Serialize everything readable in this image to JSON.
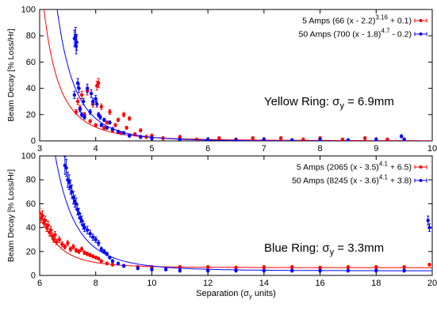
{
  "chart_data": [
    {
      "type": "scatter",
      "ylabel": "Beam Decay [% Loss/Hr]",
      "xlabel": "",
      "xlim": [
        3,
        10
      ],
      "ylim": [
        0,
        100
      ],
      "xticks": [
        "3",
        "4",
        "5",
        "6",
        "7",
        "8",
        "9",
        "10"
      ],
      "yticks": [
        "0",
        "20",
        "40",
        "60",
        "80",
        "100"
      ],
      "annotation": {
        "prefix": "Yellow Ring: ",
        "sym": "σ",
        "sub": "y",
        "suffix": " = 6.9mm"
      },
      "legend_position": "top-right",
      "series": [
        {
          "name_parts": [
            "5 Amps (66 (x - 2.2)",
            "3.16",
            " + 0.1)"
          ],
          "color": "#ff0000",
          "fit": {
            "a": 66,
            "x0": 2.2,
            "p": 3.16,
            "c": 0.1
          },
          "points": [
            [
              3.65,
              22
            ],
            [
              3.68,
              30
            ],
            [
              3.72,
              25
            ],
            [
              3.75,
              35
            ],
            [
              3.8,
              20
            ],
            [
              3.85,
              38
            ],
            [
              3.9,
              15
            ],
            [
              3.95,
              28
            ],
            [
              4.0,
              12
            ],
            [
              4.02,
              42
            ],
            [
              4.05,
              44
            ],
            [
              4.08,
              18
            ],
            [
              4.1,
              26
            ],
            [
              4.15,
              10
            ],
            [
              4.2,
              14
            ],
            [
              4.25,
              22
            ],
            [
              4.3,
              8
            ],
            [
              4.35,
              12
            ],
            [
              4.4,
              16
            ],
            [
              4.45,
              6
            ],
            [
              4.5,
              20
            ],
            [
              4.55,
              10
            ],
            [
              4.6,
              17
            ],
            [
              4.7,
              5
            ],
            [
              4.8,
              8
            ],
            [
              4.9,
              3
            ],
            [
              5.0,
              4
            ],
            [
              5.2,
              2
            ],
            [
              5.5,
              3
            ],
            [
              5.8,
              1
            ],
            [
              6.2,
              2
            ],
            [
              6.5,
              1
            ],
            [
              6.8,
              2
            ],
            [
              7.0,
              1
            ],
            [
              7.3,
              2
            ],
            [
              7.7,
              1
            ],
            [
              8.0,
              2
            ],
            [
              8.4,
              1
            ],
            [
              8.8,
              2
            ],
            [
              9.2,
              1
            ],
            [
              9.5,
              1
            ]
          ]
        },
        {
          "name_parts": [
            "50 Amps (700 (x - 1.8)",
            "4.7",
            " - 0.2)"
          ],
          "color": "#0000ff",
          "fit": {
            "a": 700,
            "x0": 1.8,
            "p": 4.7,
            "c": -0.2
          },
          "points": [
            [
              3.62,
              78
            ],
            [
              3.64,
              80
            ],
            [
              3.66,
              75
            ],
            [
              3.65,
              72
            ],
            [
              3.68,
              44
            ],
            [
              3.7,
              40
            ],
            [
              3.62,
              35
            ],
            [
              3.72,
              24
            ],
            [
              3.75,
              20
            ],
            [
              3.78,
              30
            ],
            [
              3.8,
              18
            ],
            [
              3.85,
              40
            ],
            [
              3.9,
              22
            ],
            [
              3.92,
              36
            ],
            [
              3.95,
              30
            ],
            [
              4.0,
              32
            ],
            [
              4.02,
              28
            ],
            [
              4.05,
              20
            ],
            [
              4.08,
              18
            ],
            [
              4.1,
              12
            ],
            [
              4.15,
              16
            ],
            [
              4.2,
              10
            ],
            [
              4.25,
              14
            ],
            [
              4.3,
              9
            ],
            [
              4.4,
              7
            ],
            [
              4.5,
              6
            ],
            [
              4.6,
              4
            ],
            [
              4.8,
              3
            ],
            [
              5.0,
              2
            ],
            [
              5.5,
              1
            ],
            [
              6.0,
              1
            ],
            [
              6.5,
              0.5
            ],
            [
              7.0,
              1
            ],
            [
              7.5,
              0.5
            ],
            [
              8.0,
              1
            ],
            [
              8.5,
              0.5
            ],
            [
              9.0,
              1
            ],
            [
              9.45,
              3.5
            ],
            [
              9.5,
              1
            ]
          ]
        }
      ]
    },
    {
      "type": "scatter",
      "ylabel": "Beam Decay [% Loss/Hr]",
      "xlabel": "Separation (σ_y units)",
      "xlabel_parts": [
        "Separation (",
        "σ",
        "y",
        " units)"
      ],
      "xlim": [
        6,
        20
      ],
      "ylim": [
        0,
        100
      ],
      "xticks": [
        "6",
        "8",
        "10",
        "12",
        "14",
        "16",
        "18",
        "20"
      ],
      "yticks": [
        "0",
        "20",
        "40",
        "60",
        "80",
        "100"
      ],
      "annotation": {
        "prefix": "Blue Ring: ",
        "sym": "σ",
        "sub": "y",
        "suffix": " = 3.3mm"
      },
      "legend_position": "top-right",
      "series": [
        {
          "name_parts": [
            "5 Amps (2065 (x - 3.5)",
            "4.1",
            " + 6.5)"
          ],
          "color": "#ff0000",
          "fit": {
            "a": 2065,
            "x0": 3.5,
            "p": 4.1,
            "c": 6.5
          },
          "points": [
            [
              6.0,
              52
            ],
            [
              6.05,
              48
            ],
            [
              6.1,
              50
            ],
            [
              6.15,
              44
            ],
            [
              6.2,
              46
            ],
            [
              6.25,
              40
            ],
            [
              6.3,
              42
            ],
            [
              6.35,
              36
            ],
            [
              6.4,
              38
            ],
            [
              6.45,
              33
            ],
            [
              6.5,
              30
            ],
            [
              6.55,
              34
            ],
            [
              6.6,
              28
            ],
            [
              6.7,
              30
            ],
            [
              6.8,
              26
            ],
            [
              6.9,
              24
            ],
            [
              7.0,
              27
            ],
            [
              7.1,
              22
            ],
            [
              7.2,
              24
            ],
            [
              7.3,
              21
            ],
            [
              7.4,
              20
            ],
            [
              7.5,
              22
            ],
            [
              7.6,
              19
            ],
            [
              7.7,
              18
            ],
            [
              7.8,
              17
            ],
            [
              7.9,
              16
            ],
            [
              8.0,
              15
            ],
            [
              8.1,
              14
            ],
            [
              8.2,
              12
            ],
            [
              8.4,
              10
            ],
            [
              8.6,
              9
            ],
            [
              9.0,
              8
            ],
            [
              9.5,
              7
            ],
            [
              10.0,
              7
            ],
            [
              11.0,
              7
            ],
            [
              12.0,
              7
            ],
            [
              13.0,
              6.5
            ],
            [
              14.0,
              7
            ],
            [
              15.0,
              7
            ],
            [
              16.0,
              6.5
            ],
            [
              17.0,
              7
            ],
            [
              18.0,
              7
            ],
            [
              19.0,
              7
            ],
            [
              19.9,
              9
            ]
          ]
        },
        {
          "name_parts": [
            "50 Amps (8245 (x - 3.6)",
            "4.1",
            " + 3.8)"
          ],
          "color": "#0000ff",
          "fit": {
            "a": 8245,
            "x0": 3.6,
            "p": 4.1,
            "c": 3.8
          },
          "points": [
            [
              6.9,
              92
            ],
            [
              6.95,
              90
            ],
            [
              7.0,
              80
            ],
            [
              7.05,
              78
            ],
            [
              7.1,
              74
            ],
            [
              7.15,
              70
            ],
            [
              7.2,
              65
            ],
            [
              7.25,
              62
            ],
            [
              7.3,
              60
            ],
            [
              7.35,
              55
            ],
            [
              7.4,
              52
            ],
            [
              7.45,
              48
            ],
            [
              7.5,
              46
            ],
            [
              7.55,
              42
            ],
            [
              7.6,
              40
            ],
            [
              7.7,
              38
            ],
            [
              7.8,
              35
            ],
            [
              7.9,
              32
            ],
            [
              8.0,
              30
            ],
            [
              8.1,
              27
            ],
            [
              8.2,
              22
            ],
            [
              8.3,
              20
            ],
            [
              8.4,
              18
            ],
            [
              8.5,
              15
            ],
            [
              8.6,
              12
            ],
            [
              8.8,
              10
            ],
            [
              9.0,
              8
            ],
            [
              9.5,
              6
            ],
            [
              10.0,
              5
            ],
            [
              10.5,
              5
            ],
            [
              11.0,
              4
            ],
            [
              12.0,
              4
            ],
            [
              13.0,
              4
            ],
            [
              14.0,
              4
            ],
            [
              15.0,
              4
            ],
            [
              16.0,
              4
            ],
            [
              17.0,
              4
            ],
            [
              18.0,
              4
            ],
            [
              19.0,
              4
            ],
            [
              19.85,
              46
            ],
            [
              19.9,
              40
            ]
          ]
        }
      ]
    }
  ]
}
